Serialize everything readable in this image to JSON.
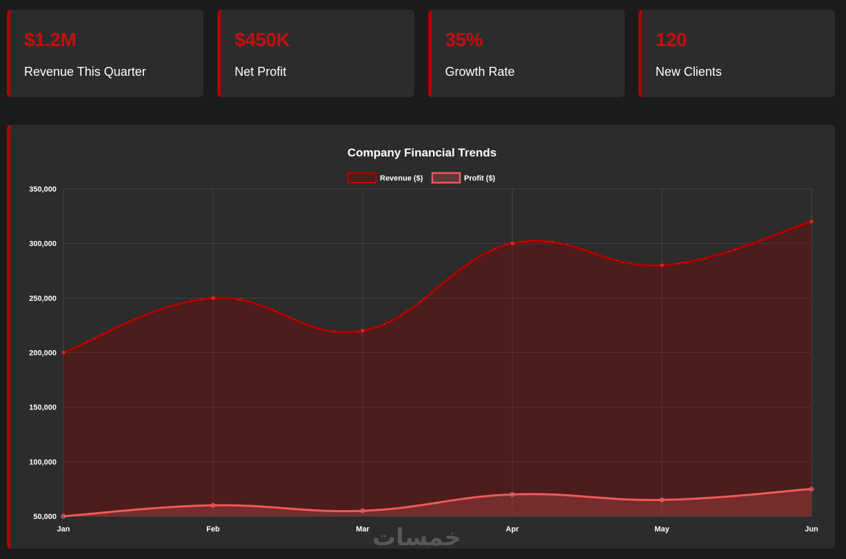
{
  "stats": [
    {
      "value": "$1.2M",
      "label": "Revenue This Quarter"
    },
    {
      "value": "$450K",
      "label": "Net Profit"
    },
    {
      "value": "35%",
      "label": "Growth Rate"
    },
    {
      "value": "120",
      "label": "New Clients"
    }
  ],
  "colors": {
    "accent": "#b30000",
    "revenue_line": "#b30000",
    "profit_line": "#f05a5a",
    "card_bg": "#2c2c2c",
    "page_bg": "#1b1b1b"
  },
  "chart_data": {
    "type": "area",
    "title": "Company Financial Trends",
    "categories": [
      "Jan",
      "Feb",
      "Mar",
      "Apr",
      "May",
      "Jun"
    ],
    "series": [
      {
        "name": "Revenue ($)",
        "values": [
          200000,
          250000,
          220000,
          300000,
          280000,
          320000
        ]
      },
      {
        "name": "Profit ($)",
        "values": [
          50000,
          60000,
          55000,
          70000,
          65000,
          75000
        ]
      }
    ],
    "ylim": [
      50000,
      350000
    ],
    "yticks": [
      "50,000",
      "100,000",
      "150,000",
      "200,000",
      "250,000",
      "300,000",
      "350,000"
    ],
    "ytick_values": [
      50000,
      100000,
      150000,
      200000,
      250000,
      300000,
      350000
    ],
    "legend": "top",
    "grid": true
  },
  "watermark": "خمسات"
}
